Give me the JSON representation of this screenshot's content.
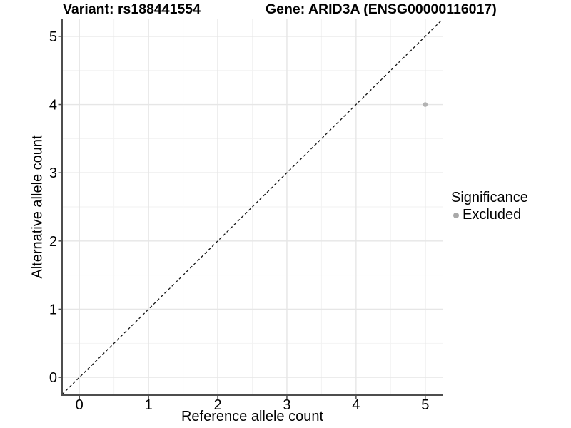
{
  "chart_data": {
    "type": "scatter",
    "title_left": "Variant: rs188441554",
    "title_right": "Gene: ARID3A (ENSG00000116017)",
    "xlabel": "Reference allele count",
    "ylabel": "Alternative allele count",
    "xlim": [
      -0.25,
      5.25
    ],
    "ylim": [
      -0.25,
      5.25
    ],
    "xticks": [
      0,
      1,
      2,
      3,
      4,
      5
    ],
    "yticks": [
      0,
      1,
      2,
      3,
      4,
      5
    ],
    "x_minor": [
      0.5,
      1.5,
      2.5,
      3.5,
      4.5
    ],
    "y_minor": [
      0.5,
      1.5,
      2.5,
      3.5,
      4.5
    ],
    "grid": "on",
    "series": [
      {
        "name": "Excluded",
        "color": "#b3b3b3",
        "points": [
          {
            "x": 5,
            "y": 4
          }
        ]
      }
    ],
    "reference_line": {
      "kind": "identity",
      "style": "dashed",
      "color": "#141414",
      "from": [
        -0.25,
        -0.25
      ],
      "to": [
        5.25,
        5.25
      ]
    },
    "legend": {
      "title": "Significance",
      "position": "right",
      "entries": [
        {
          "label": "Excluded",
          "color": "#a9a9a9",
          "marker": "point-icon"
        }
      ]
    }
  },
  "theme": {
    "background": "#ffffff",
    "grid_major": "#e6e6e6",
    "grid_minor": "#f2f2f2",
    "axis_line": "#4d4d4d",
    "tick_color": "#4d4d4d",
    "text_color": "#000000",
    "tick_font_px": 20
  }
}
